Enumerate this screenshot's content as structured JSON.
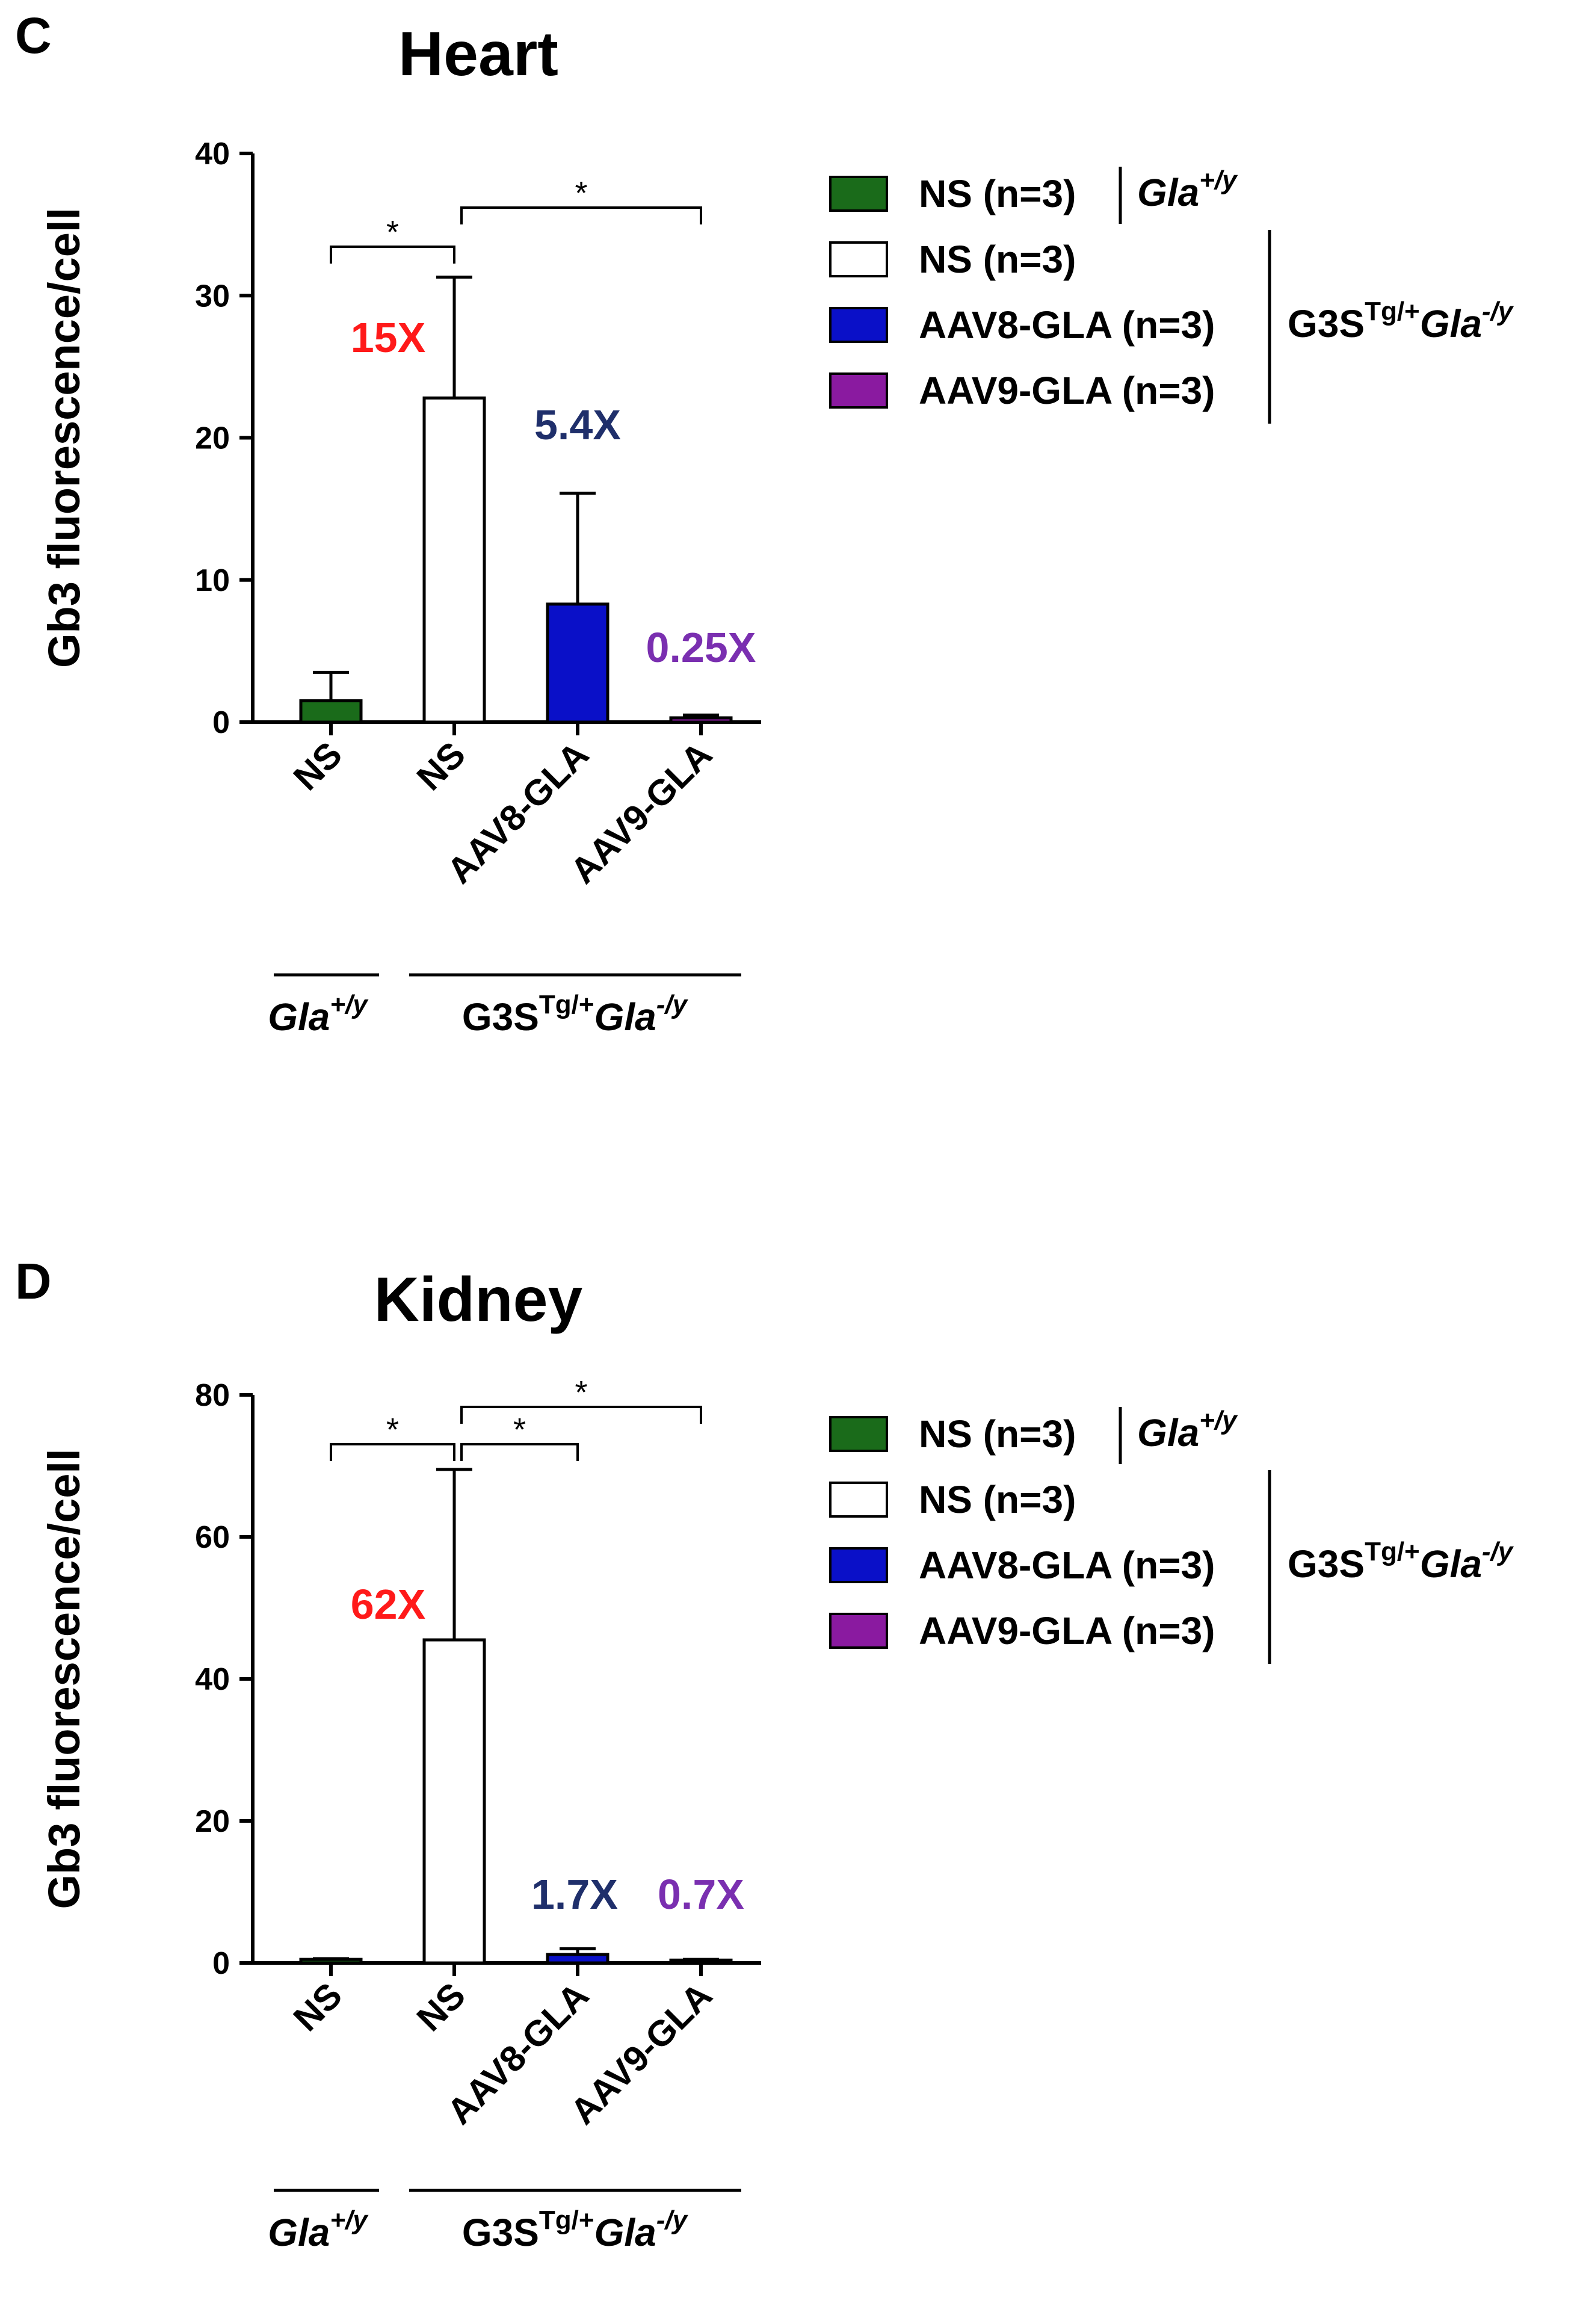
{
  "panels": [
    {
      "label": "C",
      "chart_data": {
        "type": "bar",
        "title": "Heart",
        "ylabel": "Gb3 fluorescence/cell",
        "xlabel": "",
        "ylim": [
          0,
          40
        ],
        "yticks": [
          "0",
          "10",
          "20",
          "30",
          "40"
        ],
        "categories": [
          "NS",
          "NS",
          "AAV8-GLA",
          "AAV9-GLA"
        ],
        "values": [
          1.5,
          22.8,
          8.3,
          0.3
        ],
        "errors": [
          2.0,
          8.5,
          7.8,
          0.2
        ],
        "colors": [
          "#1a6b1a",
          "#ffffff",
          "#0a10c8",
          "#8a1aa0"
        ],
        "annotations": [
          {
            "text": "15X",
            "bar": 1,
            "color": "#ff1a1a"
          },
          {
            "text": "5.4X",
            "bar": 2,
            "color": "#1f2f6b"
          },
          {
            "text": "0.25X",
            "bar": 3,
            "color": "#7a2fb0"
          }
        ],
        "significance": [
          {
            "from": 0,
            "to": 1,
            "label": "*"
          },
          {
            "from": 1,
            "to": 3,
            "label": "*"
          }
        ],
        "groups": [
          {
            "name": "Gla",
            "sup": "+/y",
            "bars": [
              0,
              0
            ]
          },
          {
            "name": "G3S",
            "sup": "Tg/+",
            "name2": "Gla",
            "sup2": "-/y",
            "bars": [
              1,
              3
            ]
          }
        ],
        "legend": [
          {
            "label": "NS (n=3)",
            "color": "#1a6b1a"
          },
          {
            "label": "NS (n=3)",
            "color": "#ffffff"
          },
          {
            "label": "AAV8-GLA (n=3)",
            "color": "#0a10c8"
          },
          {
            "label": "AAV9-GLA (n=3)",
            "color": "#8a1aa0"
          }
        ],
        "legend_groups": [
          {
            "name": "Gla",
            "sup": "+/y"
          },
          {
            "name": "G3S",
            "sup": "Tg/+",
            "name2": "Gla",
            "sup2": "-/y"
          }
        ]
      }
    },
    {
      "label": "D",
      "chart_data": {
        "type": "bar",
        "title": "Kidney",
        "ylabel": "Gb3 fluorescence/cell",
        "xlabel": "",
        "ylim": [
          0,
          80
        ],
        "yticks": [
          "0",
          "20",
          "40",
          "60",
          "80"
        ],
        "categories": [
          "NS",
          "NS",
          "AAV8-GLA",
          "AAV9-GLA"
        ],
        "values": [
          0.5,
          45.5,
          1.2,
          0.4
        ],
        "errors": [
          0.1,
          24.0,
          0.8,
          0.1
        ],
        "colors": [
          "#1a6b1a",
          "#ffffff",
          "#0a10c8",
          "#8a1aa0"
        ],
        "annotations": [
          {
            "text": "62X",
            "bar": 1,
            "color": "#ff1a1a"
          },
          {
            "text": "1.7X",
            "bar": 2,
            "color": "#1f2f6b"
          },
          {
            "text": "0.7X",
            "bar": 3,
            "color": "#7a2fb0"
          }
        ],
        "significance": [
          {
            "from": 0,
            "to": 1,
            "label": "*"
          },
          {
            "from": 1,
            "to": 2,
            "label": "*"
          },
          {
            "from": 1,
            "to": 3,
            "label": "*"
          }
        ],
        "groups": [
          {
            "name": "Gla",
            "sup": "+/y",
            "bars": [
              0,
              0
            ]
          },
          {
            "name": "G3S",
            "sup": "Tg/+",
            "name2": "Gla",
            "sup2": "-/y",
            "bars": [
              1,
              3
            ]
          }
        ],
        "legend": [
          {
            "label": "NS (n=3)",
            "color": "#1a6b1a"
          },
          {
            "label": "NS (n=3)",
            "color": "#ffffff"
          },
          {
            "label": "AAV8-GLA (n=3)",
            "color": "#0a10c8"
          },
          {
            "label": "AAV9-GLA (n=3)",
            "color": "#8a1aa0"
          }
        ],
        "legend_groups": [
          {
            "name": "Gla",
            "sup": "+/y"
          },
          {
            "name": "G3S",
            "sup": "Tg/+",
            "name2": "Gla",
            "sup2": "-/y"
          }
        ]
      }
    }
  ]
}
